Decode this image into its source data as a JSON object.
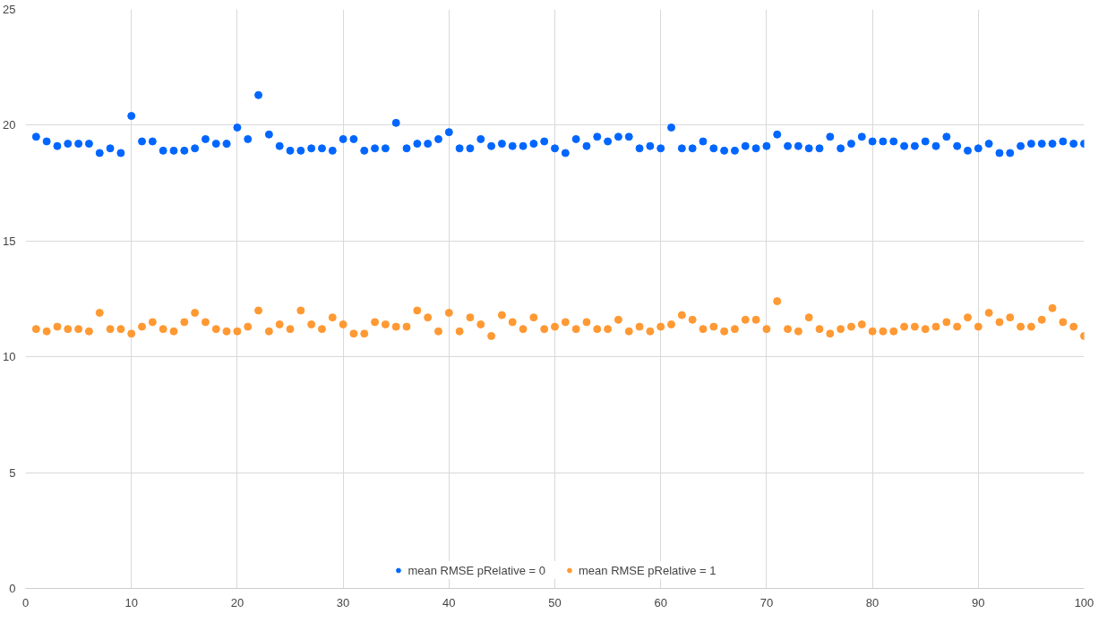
{
  "chart_data": {
    "type": "scatter",
    "marker": "circle",
    "grid": true,
    "legend": "bottom",
    "x": [
      1,
      2,
      3,
      4,
      5,
      6,
      7,
      8,
      9,
      10,
      11,
      12,
      13,
      14,
      15,
      16,
      17,
      18,
      19,
      20,
      21,
      22,
      23,
      24,
      25,
      26,
      27,
      28,
      29,
      30,
      31,
      32,
      33,
      34,
      35,
      36,
      37,
      38,
      39,
      40,
      41,
      42,
      43,
      44,
      45,
      46,
      47,
      48,
      49,
      50,
      51,
      52,
      53,
      54,
      55,
      56,
      57,
      58,
      59,
      60,
      61,
      62,
      63,
      64,
      65,
      66,
      67,
      68,
      69,
      70,
      71,
      72,
      73,
      74,
      75,
      76,
      77,
      78,
      79,
      80,
      81,
      82,
      83,
      84,
      85,
      86,
      87,
      88,
      89,
      90,
      91,
      92,
      93,
      94,
      95,
      96,
      97,
      98,
      99,
      100
    ],
    "xlim": [
      0,
      100
    ],
    "xticks": [
      0,
      10,
      20,
      30,
      40,
      50,
      60,
      70,
      80,
      90,
      100
    ],
    "ylim": [
      0,
      25
    ],
    "yticks": [
      0,
      5,
      10,
      15,
      20,
      25
    ],
    "series": [
      {
        "name": "mean RMSE pRelative = 0",
        "color": "#0066ff",
        "values": [
          19.5,
          19.3,
          19.1,
          19.2,
          19.2,
          19.2,
          18.8,
          19.0,
          18.8,
          20.4,
          19.3,
          19.3,
          18.9,
          18.9,
          18.9,
          19.0,
          19.4,
          19.2,
          19.2,
          19.9,
          19.4,
          21.3,
          19.6,
          19.1,
          18.9,
          18.9,
          19.0,
          19.0,
          18.9,
          19.4,
          19.4,
          18.9,
          19.0,
          19.0,
          20.1,
          19.0,
          19.2,
          19.2,
          19.4,
          19.7,
          19.0,
          19.0,
          19.4,
          19.1,
          19.2,
          19.1,
          19.1,
          19.2,
          19.3,
          19.0,
          18.8,
          19.4,
          19.1,
          19.5,
          19.3,
          19.5,
          19.5,
          19.0,
          19.1,
          19.0,
          19.9,
          19.0,
          19.0,
          19.3,
          19.0,
          18.9,
          18.9,
          19.1,
          19.0,
          19.1,
          19.6,
          19.1,
          19.1,
          19.0,
          19.0,
          19.5,
          19.0,
          19.2,
          19.5,
          19.3,
          19.3,
          19.3,
          19.1,
          19.1,
          19.3,
          19.1,
          19.5,
          19.1,
          18.9,
          19.0,
          19.2,
          18.8,
          18.8,
          19.1,
          19.2,
          19.2,
          19.2,
          19.3,
          19.2,
          19.2
        ]
      },
      {
        "name": "mean RMSE pRelative = 1",
        "color": "#ff9933",
        "values": [
          11.2,
          11.1,
          11.3,
          11.2,
          11.2,
          11.1,
          11.9,
          11.2,
          11.2,
          11.0,
          11.3,
          11.5,
          11.2,
          11.1,
          11.5,
          11.9,
          11.5,
          11.2,
          11.1,
          11.1,
          11.3,
          12.0,
          11.1,
          11.4,
          11.2,
          12.0,
          11.4,
          11.2,
          11.7,
          11.4,
          11.0,
          11.0,
          11.5,
          11.4,
          11.3,
          11.3,
          12.0,
          11.7,
          11.1,
          11.9,
          11.1,
          11.7,
          11.4,
          10.9,
          11.8,
          11.5,
          11.2,
          11.7,
          11.2,
          11.3,
          11.5,
          11.2,
          11.5,
          11.2,
          11.2,
          11.6,
          11.1,
          11.3,
          11.1,
          11.3,
          11.4,
          11.8,
          11.6,
          11.2,
          11.3,
          11.1,
          11.2,
          11.6,
          11.6,
          11.2,
          12.4,
          11.2,
          11.1,
          11.7,
          11.2,
          11.0,
          11.2,
          11.3,
          11.4,
          11.1,
          11.1,
          11.1,
          11.3,
          11.3,
          11.2,
          11.3,
          11.5,
          11.3,
          11.7,
          11.3,
          11.9,
          11.5,
          11.7,
          11.3,
          11.3,
          11.6,
          12.1,
          11.5,
          11.3,
          10.9
        ]
      }
    ]
  }
}
